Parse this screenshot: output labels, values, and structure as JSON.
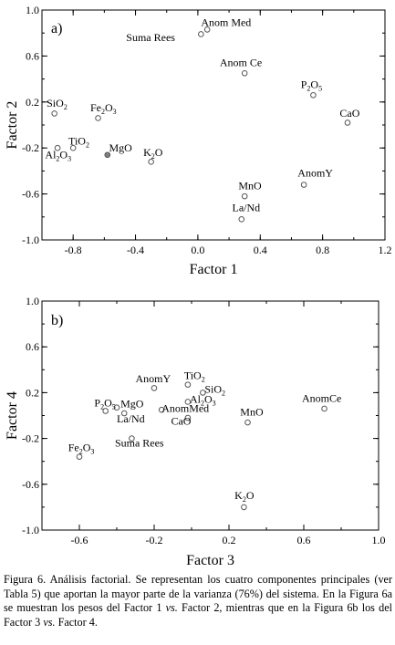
{
  "chart_data": [
    {
      "type": "scatter",
      "panel": "a)",
      "xlabel": "Factor 1",
      "ylabel": "Factor 2",
      "xlim": [
        -1.0,
        1.2
      ],
      "ylim": [
        -1.0,
        1.0
      ],
      "xticks": [
        -0.8,
        -0.4,
        0.0,
        0.4,
        0.8,
        1.2
      ],
      "yticks": [
        1.0,
        0.6,
        0.2,
        -0.2,
        -0.6,
        -1.0
      ],
      "ytick_labels": [
        "1.0",
        "0.6",
        "0.2",
        "-0.2",
        "-0.6",
        "-1.0"
      ],
      "points": [
        {
          "label": "Anom Med",
          "label_html": "Anom Med",
          "x": 0.06,
          "y": 0.83,
          "lx": 0.02,
          "ly": 0.86,
          "anchor": "start"
        },
        {
          "label": "Suma Rees",
          "label_html": "Suma Rees",
          "x": 0.02,
          "y": 0.79,
          "lx": -0.46,
          "ly": 0.73,
          "anchor": "start"
        },
        {
          "label": "Anom Ce",
          "label_html": "Anom Ce",
          "x": 0.3,
          "y": 0.45,
          "lx": 0.14,
          "ly": 0.51,
          "anchor": "start"
        },
        {
          "label": "P2O5",
          "label_html": "P<tspan dy='3' font-size='8'>2</tspan><tspan dy='-3'>O</tspan><tspan dy='3' font-size='8'>5</tspan>",
          "x": 0.74,
          "y": 0.26,
          "lx": 0.66,
          "ly": 0.32,
          "anchor": "start"
        },
        {
          "label": "SiO2",
          "label_html": "SiO<tspan dy='3' font-size='8'>2</tspan>",
          "x": -0.92,
          "y": 0.1,
          "lx": -0.97,
          "ly": 0.16,
          "anchor": "start"
        },
        {
          "label": "Fe2O3",
          "label_html": "Fe<tspan dy='3' font-size='8'>2</tspan><tspan dy='-3'>O</tspan><tspan dy='3' font-size='8'>3</tspan>",
          "x": -0.64,
          "y": 0.06,
          "lx": -0.69,
          "ly": 0.12,
          "anchor": "start"
        },
        {
          "label": "CaO",
          "label_html": "CaO",
          "x": 0.96,
          "y": 0.02,
          "lx": 0.91,
          "ly": 0.07,
          "anchor": "start"
        },
        {
          "label": "TiO2",
          "label_html": "TiO<tspan dy='3' font-size='8'>2</tspan>",
          "x": -0.8,
          "y": -0.2,
          "lx": -0.83,
          "ly": -0.17,
          "anchor": "start"
        },
        {
          "label": "Al2O3",
          "label_html": "Al<tspan dy='3' font-size='8'>2</tspan><tspan dy='-3'>O</tspan><tspan dy='3' font-size='8'>3</tspan>",
          "x": -0.9,
          "y": -0.2,
          "lx": -0.98,
          "ly": -0.29,
          "anchor": "start"
        },
        {
          "label": "MgO",
          "label_html": "MgO",
          "x": -0.58,
          "y": -0.26,
          "lx": -0.57,
          "ly": -0.23,
          "anchor": "start",
          "filled": true
        },
        {
          "label": "K2O",
          "label_html": "K<tspan dy='3' font-size='8'>2</tspan><tspan dy='-3'>O</tspan>",
          "x": -0.3,
          "y": -0.32,
          "lx": -0.35,
          "ly": -0.27,
          "anchor": "start"
        },
        {
          "label": "AnomY",
          "label_html": "AnomY",
          "x": 0.68,
          "y": -0.52,
          "lx": 0.64,
          "ly": -0.45,
          "anchor": "start"
        },
        {
          "label": "MnO",
          "label_html": "MnO",
          "x": 0.3,
          "y": -0.62,
          "lx": 0.26,
          "ly": -0.56,
          "anchor": "start"
        },
        {
          "label": "La/Nd",
          "label_html": "La/Nd",
          "x": 0.28,
          "y": -0.82,
          "lx": 0.22,
          "ly": -0.75,
          "anchor": "start"
        }
      ]
    },
    {
      "type": "scatter",
      "panel": "b)",
      "xlabel": "Factor 3",
      "ylabel": "Factor 4",
      "xlim": [
        -0.8,
        1.0
      ],
      "ylim": [
        -1.0,
        1.0
      ],
      "xticks": [
        -0.6,
        -0.2,
        0.2,
        0.6,
        1.0
      ],
      "yticks": [
        1.0,
        0.6,
        0.2,
        -0.2,
        -0.6,
        -1.0
      ],
      "ytick_labels": [
        "1.0",
        "0.6",
        "0.2",
        "-0.2",
        "-0.6",
        "-1.0"
      ],
      "points": [
        {
          "label": "AnomY",
          "label_html": "AnomY",
          "x": -0.2,
          "y": 0.24,
          "lx": -0.3,
          "ly": 0.29,
          "anchor": "start"
        },
        {
          "label": "TiO2",
          "label_html": "TiO<tspan dy='3' font-size='8'>2</tspan>",
          "x": -0.02,
          "y": 0.27,
          "lx": -0.04,
          "ly": 0.32,
          "anchor": "start"
        },
        {
          "label": "SiO2",
          "label_html": "SiO<tspan dy='3' font-size='8'>2</tspan>",
          "x": 0.06,
          "y": 0.2,
          "lx": 0.07,
          "ly": 0.2,
          "anchor": "start"
        },
        {
          "label": "Al2O3",
          "label_html": "Al<tspan dy='3' font-size='8'>2</tspan><tspan dy='-3'>O</tspan><tspan dy='3' font-size='8'>3</tspan>",
          "x": -0.02,
          "y": 0.12,
          "lx": -0.01,
          "ly": 0.11,
          "anchor": "start"
        },
        {
          "label": "P2O5",
          "label_html": "P<tspan dy='3' font-size='8'>2</tspan><tspan dy='-3'>O</tspan><tspan dy='3' font-size='8'>5</tspan>",
          "x": -0.4,
          "y": 0.07,
          "lx": -0.52,
          "ly": 0.08,
          "anchor": "start"
        },
        {
          "label": "MgO",
          "label_html": "MgO",
          "x": -0.46,
          "y": 0.04,
          "lx": -0.38,
          "ly": 0.07,
          "anchor": "start"
        },
        {
          "label": "AnomMed",
          "label_html": "AnomMed",
          "x": -0.16,
          "y": 0.05,
          "lx": -0.16,
          "ly": 0.03,
          "anchor": "start"
        },
        {
          "label": "La/Nd",
          "label_html": "La/Nd",
          "x": -0.36,
          "y": 0.02,
          "lx": -0.4,
          "ly": -0.06,
          "anchor": "start"
        },
        {
          "label": "CaO",
          "label_html": "CaO",
          "x": -0.02,
          "y": -0.02,
          "lx": -0.11,
          "ly": -0.08,
          "anchor": "start"
        },
        {
          "label": "MnO",
          "label_html": "MnO",
          "x": 0.3,
          "y": -0.06,
          "lx": 0.26,
          "ly": 0.0,
          "anchor": "start"
        },
        {
          "label": "AnomCe",
          "label_html": "AnomCe",
          "x": 0.71,
          "y": 0.06,
          "lx": 0.59,
          "ly": 0.12,
          "anchor": "start"
        },
        {
          "label": "Suma Rees",
          "label_html": "Suma Rees",
          "x": -0.32,
          "y": -0.2,
          "lx": -0.41,
          "ly": -0.27,
          "anchor": "start"
        },
        {
          "label": "Fe2O3",
          "label_html": "Fe<tspan dy='3' font-size='8'>2</tspan><tspan dy='-3'>O</tspan><tspan dy='3' font-size='8'>3</tspan>",
          "x": -0.6,
          "y": -0.36,
          "lx": -0.66,
          "ly": -0.31,
          "anchor": "start"
        },
        {
          "label": "K2O",
          "label_html": "K<tspan dy='3' font-size='8'>2</tspan><tspan dy='-3'>O</tspan>",
          "x": 0.28,
          "y": -0.8,
          "lx": 0.23,
          "ly": -0.73,
          "anchor": "start"
        }
      ]
    }
  ],
  "caption": {
    "figure_label": "Figura 6.",
    "text_1": " Análisis factorial. Se representan los cuatro componentes principales (ver Tabla 5) que aportan la mayor parte de la varianza (76%) del sistema. En la Figura 6a se muestran los pesos del Factor 1 ",
    "vs_1": "vs.",
    "text_2": " Factor 2, mientras que en la Figura 6b los del Factor 3 ",
    "vs_2": "vs.",
    "text_3": " Factor 4."
  }
}
